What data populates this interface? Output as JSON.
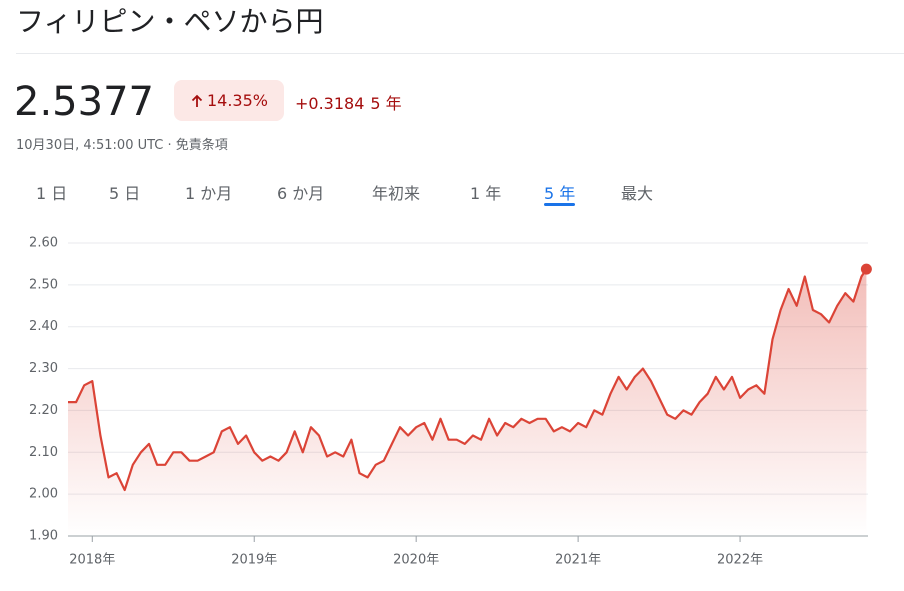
{
  "header": {
    "title": "フィリピン・ペソから円"
  },
  "quote": {
    "price": "2.5377",
    "change_percent": "14.35%",
    "change_value": "+0.3184",
    "period": "5 年",
    "timestamp": "10月30日, 4:51:00 UTC",
    "disclaimer": "免責条項"
  },
  "tabs": [
    "1 日",
    "5 日",
    "1 か月",
    "6 か月",
    "年初来",
    "1 年",
    "5 年",
    "最大"
  ],
  "selected_tab": 6,
  "chart_data": {
    "type": "line",
    "color": "#db4437",
    "grid": true,
    "x": [
      2017.85,
      2017.9,
      2017.95,
      2018.0,
      2018.05,
      2018.1,
      2018.15,
      2018.2,
      2018.25,
      2018.3,
      2018.35,
      2018.4,
      2018.45,
      2018.5,
      2018.55,
      2018.6,
      2018.65,
      2018.7,
      2018.75,
      2018.8,
      2018.85,
      2018.9,
      2018.95,
      2019.0,
      2019.05,
      2019.1,
      2019.15,
      2019.2,
      2019.25,
      2019.3,
      2019.35,
      2019.4,
      2019.45,
      2019.5,
      2019.55,
      2019.6,
      2019.65,
      2019.7,
      2019.75,
      2019.8,
      2019.85,
      2019.9,
      2019.95,
      2020.0,
      2020.05,
      2020.1,
      2020.15,
      2020.2,
      2020.25,
      2020.3,
      2020.35,
      2020.4,
      2020.45,
      2020.5,
      2020.55,
      2020.6,
      2020.65,
      2020.7,
      2020.75,
      2020.8,
      2020.85,
      2020.9,
      2020.95,
      2021.0,
      2021.05,
      2021.1,
      2021.15,
      2021.2,
      2021.25,
      2021.3,
      2021.35,
      2021.4,
      2021.45,
      2021.5,
      2021.55,
      2021.6,
      2021.65,
      2021.7,
      2021.75,
      2021.8,
      2021.85,
      2021.9,
      2021.95,
      2022.0,
      2022.05,
      2022.1,
      2022.15,
      2022.2,
      2022.25,
      2022.3,
      2022.35,
      2022.4,
      2022.45,
      2022.5,
      2022.55,
      2022.6,
      2022.65,
      2022.7,
      2022.75,
      2022.78
    ],
    "values": [
      2.22,
      2.22,
      2.26,
      2.27,
      2.14,
      2.04,
      2.05,
      2.01,
      2.07,
      2.1,
      2.12,
      2.07,
      2.07,
      2.1,
      2.1,
      2.08,
      2.08,
      2.09,
      2.1,
      2.15,
      2.16,
      2.12,
      2.14,
      2.1,
      2.08,
      2.09,
      2.08,
      2.1,
      2.15,
      2.1,
      2.16,
      2.14,
      2.09,
      2.1,
      2.09,
      2.13,
      2.05,
      2.04,
      2.07,
      2.08,
      2.12,
      2.16,
      2.14,
      2.16,
      2.17,
      2.13,
      2.18,
      2.13,
      2.13,
      2.12,
      2.14,
      2.13,
      2.18,
      2.14,
      2.17,
      2.16,
      2.18,
      2.17,
      2.18,
      2.18,
      2.15,
      2.16,
      2.15,
      2.17,
      2.16,
      2.2,
      2.19,
      2.24,
      2.28,
      2.25,
      2.28,
      2.3,
      2.27,
      2.23,
      2.19,
      2.18,
      2.2,
      2.19,
      2.22,
      2.24,
      2.28,
      2.25,
      2.28,
      2.23,
      2.25,
      2.26,
      2.24,
      2.37,
      2.44,
      2.49,
      2.45,
      2.52,
      2.44,
      2.43,
      2.41,
      2.45,
      2.48,
      2.46,
      2.52,
      2.5377
    ],
    "xlim": [
      2017.85,
      2022.79
    ],
    "xticks": [
      {
        "value": 2018,
        "label": "2018年"
      },
      {
        "value": 2019,
        "label": "2019年"
      },
      {
        "value": 2020,
        "label": "2020年"
      },
      {
        "value": 2021,
        "label": "2021年"
      },
      {
        "value": 2022,
        "label": "2022年"
      }
    ],
    "ylim": [
      1.9,
      2.6
    ],
    "yticks": [
      {
        "value": 1.9,
        "label": "1.90"
      },
      {
        "value": 2.0,
        "label": "2.00"
      },
      {
        "value": 2.1,
        "label": "2.10"
      },
      {
        "value": 2.2,
        "label": "2.20"
      },
      {
        "value": 2.3,
        "label": "2.30"
      },
      {
        "value": 2.4,
        "label": "2.40"
      },
      {
        "value": 2.5,
        "label": "2.50"
      },
      {
        "value": 2.6,
        "label": "2.60"
      }
    ]
  }
}
